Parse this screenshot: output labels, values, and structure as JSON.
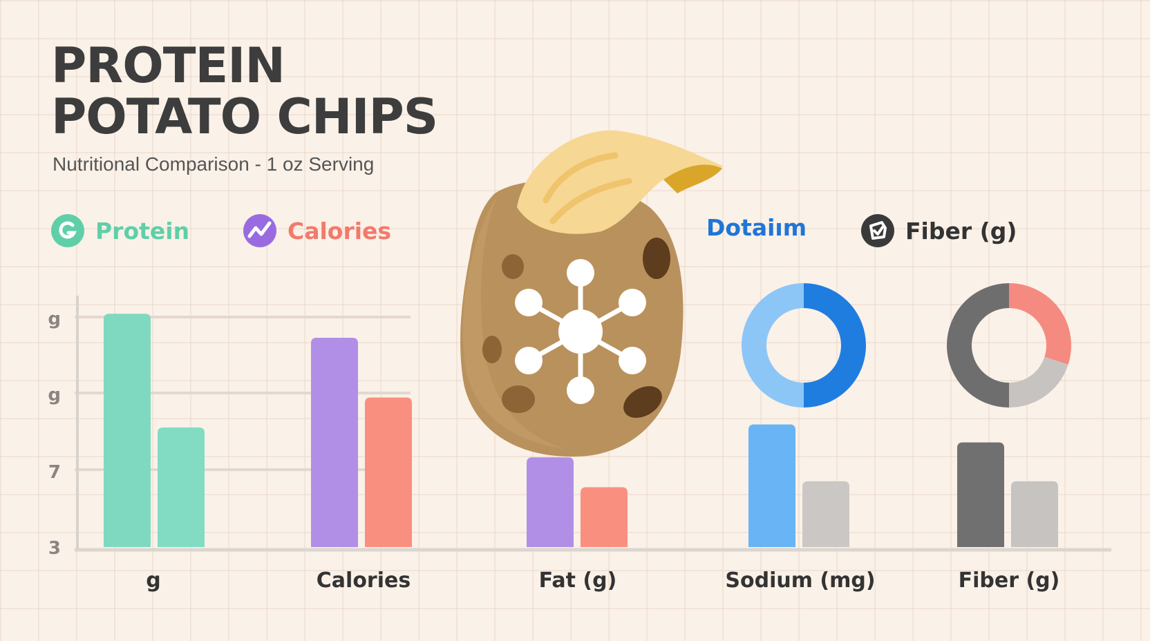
{
  "header": {
    "title_line1": "PROTEIN",
    "title_line2": "POTATO CHIPS",
    "subtitle": "Nutritional Comparison - 1 oz Serving"
  },
  "legend": [
    {
      "label": "Protein",
      "color": "#5fcfa8",
      "icon": "protein-g-icon"
    },
    {
      "label": "Calories",
      "color": "#f27a6b",
      "icon": "trend-icon"
    },
    {
      "label": "Dotaiım",
      "color": "#1f76d6",
      "icon": ""
    },
    {
      "label": "Fiber (g)",
      "color": "#333333",
      "icon": "shield-icon"
    }
  ],
  "illustration": {
    "icon": "potato-chip-molecule-icon"
  },
  "chart_data": [
    {
      "type": "bar",
      "categories": [
        "g",
        "Calories",
        "Fat (g)",
        "Sodium (mg)",
        "Fiber (g)"
      ],
      "y_tick_labels": [
        "g",
        "g",
        "7",
        "3"
      ],
      "series": [
        {
          "values": [
            10.8,
            10.0,
            6.0,
            7.1,
            6.5
          ],
          "colors": [
            "#7fd9c0",
            "#b18fe6",
            "#b18fe6",
            "#69b4f5",
            "#707070"
          ]
        },
        {
          "values": [
            7.0,
            8.0,
            5.0,
            5.2,
            5.2
          ],
          "colors": [
            "#82dcc4",
            "#f9907f",
            "#f9907f",
            "#cbc7c4",
            "#c6c3c0"
          ]
        }
      ],
      "ylim": [
        3,
        11.5
      ],
      "grid": true
    },
    {
      "type": "pie",
      "values": [
        50,
        50
      ],
      "colors": [
        "#1f7de0",
        "#8cc6f7"
      ]
    },
    {
      "type": "pie",
      "values": [
        30,
        20,
        50
      ],
      "colors": [
        "#f58a80",
        "#c7c3c0",
        "#6e6e6e"
      ]
    }
  ]
}
